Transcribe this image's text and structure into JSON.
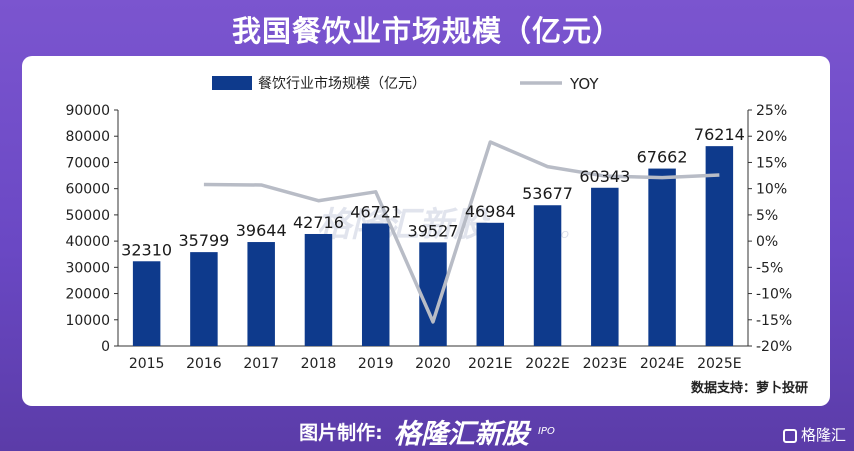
{
  "page": {
    "title": "我国餐饮业市场规模（亿元）",
    "footer_label": "图片制作:",
    "footer_brand": "格隆汇新股",
    "footer_brand_sub": "IPO",
    "corner_brand": "格隆汇",
    "watermark": "格隆汇新股",
    "watermark_sub": "IPO"
  },
  "chart_data": {
    "type": "bar",
    "categories": [
      "2015",
      "2016",
      "2017",
      "2018",
      "2019",
      "2020",
      "2021E",
      "2022E",
      "2023E",
      "2024E",
      "2025E"
    ],
    "series": [
      {
        "name": "餐饮行业市场规模（亿元）",
        "type": "bar",
        "axis": "left",
        "values": [
          32310,
          35799,
          39644,
          42716,
          46721,
          39527,
          46984,
          53677,
          60343,
          67662,
          76214
        ],
        "labels": [
          "32310",
          "35799",
          "39644",
          "42716",
          "46721",
          "39527",
          "46984",
          "53677",
          "60343",
          "67662",
          "76214"
        ]
      },
      {
        "name": "YOY",
        "type": "line",
        "axis": "right",
        "values": [
          null,
          10.8,
          10.7,
          7.7,
          9.4,
          -15.4,
          18.9,
          14.2,
          12.4,
          12.1,
          12.6
        ]
      }
    ],
    "y_left": {
      "min": 0,
      "max": 90000,
      "ticks": [
        "0",
        "10000",
        "20000",
        "30000",
        "40000",
        "50000",
        "60000",
        "70000",
        "80000",
        "90000"
      ]
    },
    "y_right": {
      "min": -20,
      "max": 25,
      "ticks": [
        "-20%",
        "-15%",
        "-10%",
        "-5%",
        "0%",
        "5%",
        "10%",
        "15%",
        "20%",
        "25%"
      ]
    },
    "source": "数据支持：萝卜投研",
    "legend_position": "top",
    "grid": false,
    "colors": {
      "bar": "#0e3a8c",
      "line": "#b8bcc6",
      "axis": "#333333"
    }
  }
}
